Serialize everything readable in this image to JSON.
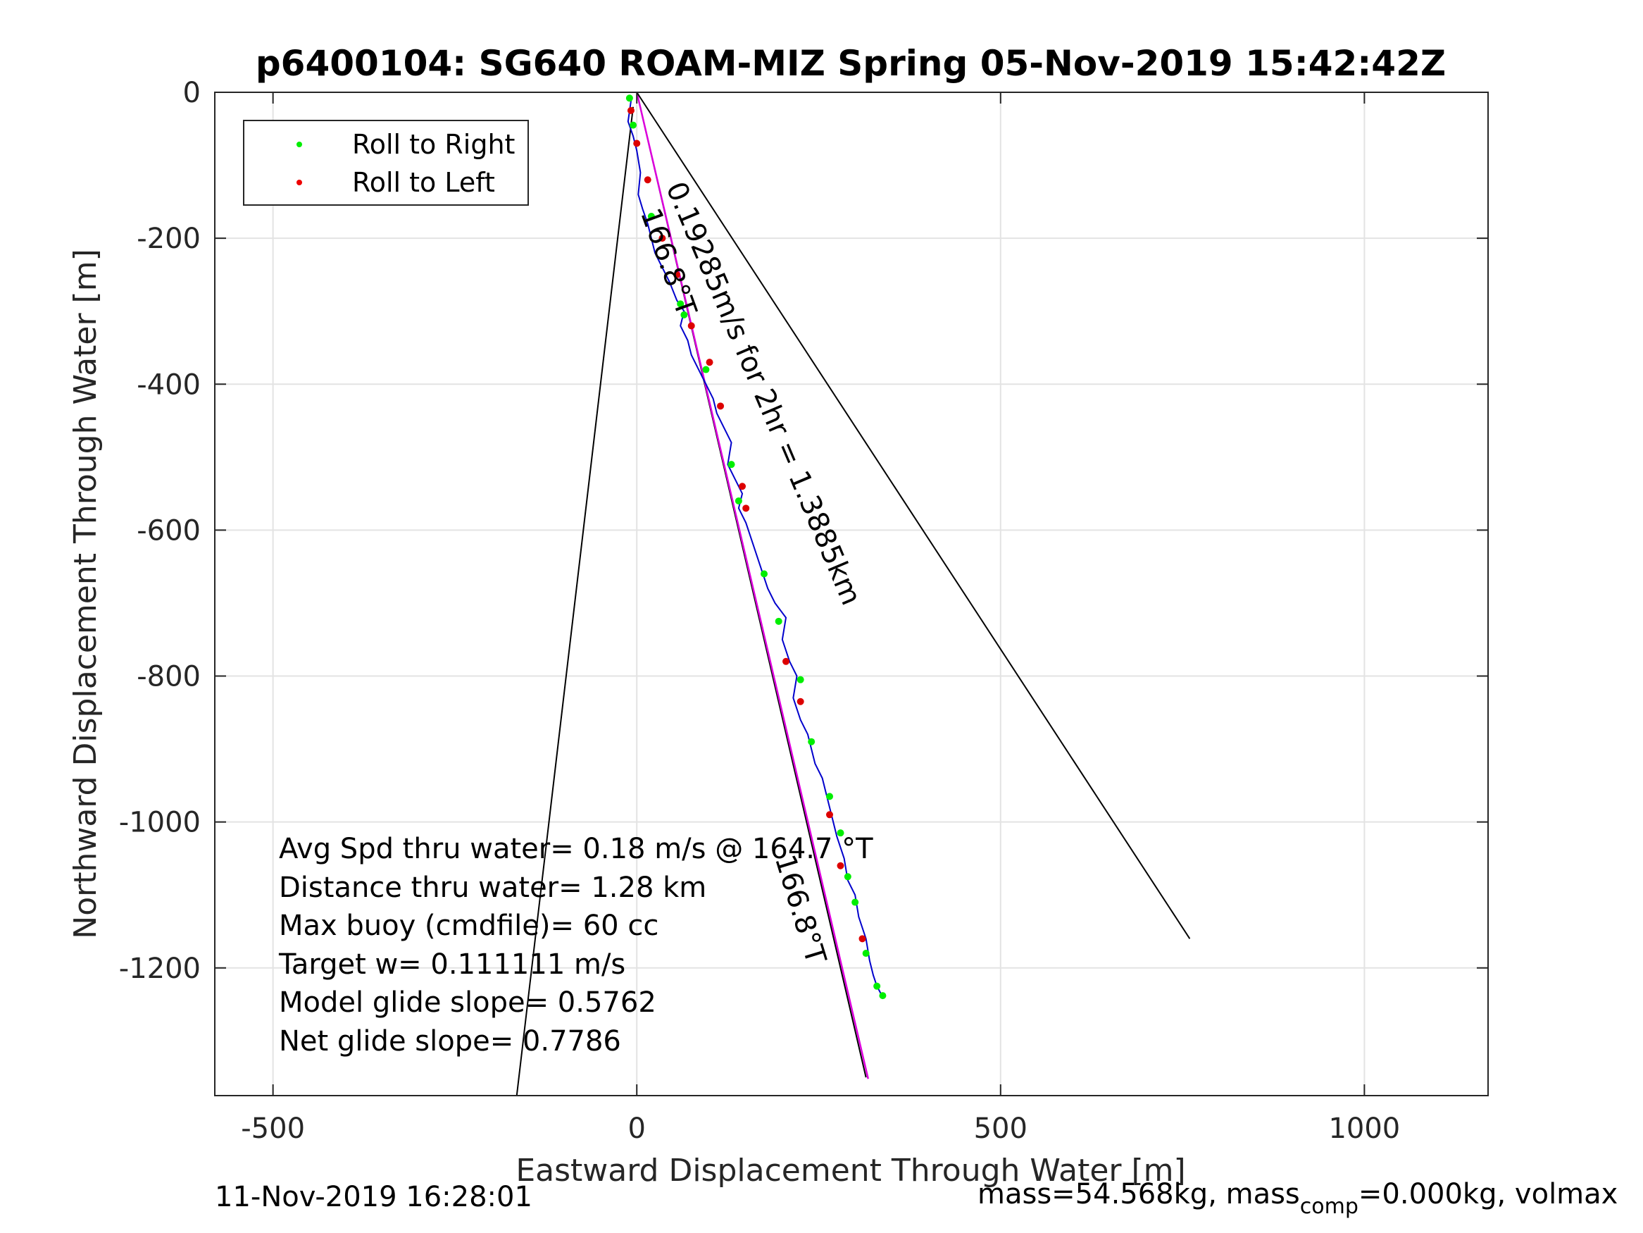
{
  "chart_data": {
    "type": "scatter",
    "title": "p6400104: SG640 ROAM-MIZ Spring 05-Nov-2019 15:42:42Z",
    "xlabel": "Eastward Displacement Through Water [m]",
    "ylabel": "Northward Displacement Through Water [m]",
    "xlim": [
      -580,
      1170
    ],
    "ylim": [
      -1375,
      0
    ],
    "xticks": [
      -500,
      0,
      500,
      1000
    ],
    "yticks": [
      0,
      -200,
      -400,
      -600,
      -800,
      -1000,
      -1200
    ],
    "xtick_labels": [
      "-500",
      "0",
      "500",
      "1000"
    ],
    "ytick_labels": [
      "0",
      "-200",
      "-400",
      "-600",
      "-800",
      "-1000",
      "-1200"
    ],
    "grid": true,
    "legend_position": "top-left",
    "legend": [
      {
        "label": "Roll to Right",
        "color": "#00ee00"
      },
      {
        "label": "Roll to Left",
        "color": "#ee0000"
      }
    ],
    "track": {
      "color": "#0000cc",
      "x": [
        -10,
        -8,
        -12,
        -5,
        0,
        5,
        2,
        8,
        15,
        20,
        25,
        35,
        45,
        55,
        65,
        60,
        70,
        75,
        85,
        95,
        105,
        110,
        120,
        130,
        125,
        135,
        145,
        140,
        150,
        160,
        170,
        180,
        190,
        205,
        200,
        210,
        220,
        215,
        225,
        235,
        240,
        245,
        255,
        260,
        265,
        270,
        275,
        285,
        290,
        300,
        305,
        315,
        320,
        325,
        330,
        338
      ],
      "y": [
        -5,
        -12,
        -40,
        -60,
        -80,
        -110,
        -140,
        -160,
        -180,
        -200,
        -220,
        -240,
        -260,
        -285,
        -300,
        -320,
        -340,
        -360,
        -380,
        -400,
        -420,
        -440,
        -460,
        -480,
        -510,
        -530,
        -550,
        -570,
        -590,
        -620,
        -650,
        -680,
        -700,
        -720,
        -750,
        -780,
        -800,
        -830,
        -860,
        -880,
        -900,
        -920,
        -940,
        -960,
        -980,
        -1000,
        -1020,
        -1050,
        -1080,
        -1100,
        -1130,
        -1160,
        -1190,
        -1210,
        -1225,
        -1240
      ]
    },
    "roll_right_points": {
      "x": [
        -10,
        -5,
        20,
        60,
        65,
        95,
        130,
        140,
        175,
        195,
        225,
        240,
        265,
        280,
        290,
        300,
        315,
        330,
        338
      ],
      "y": [
        -8,
        -45,
        -170,
        -290,
        -305,
        -380,
        -510,
        -560,
        -660,
        -725,
        -805,
        -890,
        -965,
        -1015,
        -1075,
        -1110,
        -1180,
        -1225,
        -1238
      ]
    },
    "roll_left_points": {
      "x": [
        -8,
        0,
        15,
        35,
        55,
        75,
        100,
        115,
        145,
        150,
        205,
        225,
        265,
        280,
        310
      ],
      "y": [
        -25,
        -70,
        -120,
        -200,
        -250,
        -320,
        -370,
        -430,
        -540,
        -570,
        -780,
        -835,
        -990,
        -1060,
        -1160
      ]
    },
    "lines": [
      {
        "name": "heading-line",
        "color": "#000000",
        "x": [
          0,
          315
        ],
        "y": [
          0,
          -1350
        ]
      },
      {
        "name": "heading-line-magenta",
        "color": "#dd00dd",
        "x": [
          0,
          318
        ],
        "y": [
          0,
          -1352
        ]
      },
      {
        "name": "cone-left",
        "color": "#000000",
        "x": [
          -5,
          -165
        ],
        "y": [
          -20,
          -1375
        ]
      },
      {
        "name": "cone-right",
        "color": "#000000",
        "x": [
          0,
          760
        ],
        "y": [
          0,
          -1160
        ]
      }
    ],
    "annotations": [
      {
        "text": "166.8°T",
        "x": 5,
        "y": -165,
        "rotation": 70
      },
      {
        "text": "0.19285m/s for 2hr = 1.3885km",
        "x": 40,
        "y": -130,
        "rotation": 67
      },
      {
        "text": "166.8°T",
        "x": 190,
        "y": -1050,
        "rotation": 73
      }
    ],
    "stats": [
      "Avg Spd thru water=  0.18 m/s @ 164.7 °T",
      "Distance thru water=  1.28 km",
      "Max buoy (cmdfile)= 60 cc",
      "Target w= 0.111111 m/s",
      "Model glide slope= 0.5762",
      "Net glide slope= 0.7786"
    ],
    "footer_left": "11-Nov-2019 16:28:01",
    "footer_right_main": "mass=54.568kg, mass",
    "footer_right_sub": "comp",
    "footer_right_tail": "=0.000kg, volmax"
  }
}
